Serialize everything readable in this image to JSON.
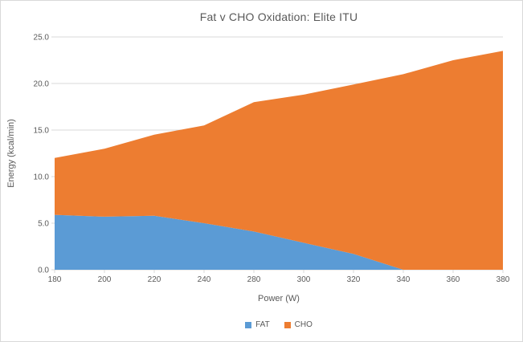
{
  "chart_data": {
    "type": "area",
    "stacked": true,
    "title": "Fat v CHO Oxidation: Elite ITU",
    "xlabel": "Power (W)",
    "ylabel": "Energy (kcal/min)",
    "categories": [
      180,
      200,
      220,
      240,
      280,
      300,
      320,
      340,
      360,
      380
    ],
    "series": [
      {
        "name": "FAT",
        "color": "#5B9BD5",
        "values": [
          5.9,
          5.7,
          5.8,
          5.0,
          4.1,
          2.9,
          1.7,
          0.0,
          0.0,
          0.0
        ]
      },
      {
        "name": "CHO",
        "color": "#ED7D31",
        "values": [
          6.1,
          7.3,
          8.7,
          10.5,
          13.9,
          15.9,
          18.2,
          21.0,
          22.5,
          23.5
        ]
      }
    ],
    "stacked_totals": [
      12.0,
      13.0,
      14.5,
      15.5,
      18.0,
      18.8,
      19.9,
      21.0,
      22.5,
      23.5
    ],
    "ylim": [
      0,
      25
    ],
    "ytick_step": 5,
    "ytick_labels": [
      "0.0",
      "5.0",
      "10.0",
      "15.0",
      "20.0",
      "25.0"
    ],
    "xtick_labels": [
      "180",
      "200",
      "220",
      "240",
      "280",
      "300",
      "320",
      "340",
      "360",
      "380"
    ],
    "grid": "horizontal",
    "legend_position": "bottom"
  },
  "colors": {
    "grid": "#d9d9d9",
    "axis_text": "#595959",
    "frame_border": "#d9d9d9",
    "background": "#ffffff"
  }
}
